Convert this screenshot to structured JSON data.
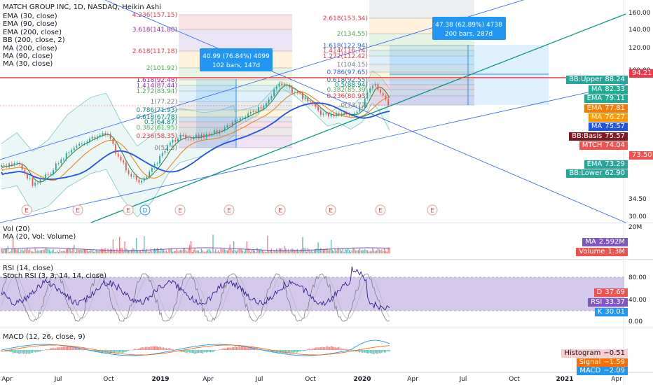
{
  "chart_data": {
    "type": "candlestick",
    "title": "MATCH GROUP INC, 1D, NASDAQ, Heikin Ashi",
    "x_ticks": [
      "Apr",
      "Jul",
      "Oct",
      "2019",
      "Apr",
      "Jul",
      "Oct",
      "2020",
      "Apr",
      "Jul",
      "Oct",
      "2021",
      "Apr"
    ],
    "main_y_ticks": [
      "160.00",
      "140.00",
      "120.00",
      "100.00",
      "34.50",
      "30.00"
    ],
    "main_legend": [
      "EMA (30, close)",
      "EMA (90, close)",
      "EMA (200, close)",
      "BB (200, close, 2)",
      "MA (200, close)",
      "MA (90, close)",
      "MA (30, close)"
    ],
    "price_badges": [
      {
        "label": "",
        "value": "94.21",
        "color": "#f23645"
      },
      {
        "label": "BB:Upper",
        "value": "88.24",
        "color": "#26a69a"
      },
      {
        "label": "MA",
        "value": "82.33",
        "color": "#22ab94"
      },
      {
        "label": "EMA",
        "value": "79.11",
        "color": "#22ab94"
      },
      {
        "label": "EMA",
        "value": "77.81",
        "color": "#f57c00"
      },
      {
        "label": "MA",
        "value": "76.27",
        "color": "#ff9800"
      },
      {
        "label": "MA",
        "value": "75.57",
        "color": "#1e53e5"
      },
      {
        "label": "BB:Basis",
        "value": "75.57",
        "color": "#801922"
      },
      {
        "label": "MTCH",
        "value": "74.04",
        "color": "#ef5350"
      },
      {
        "label": "",
        "value": "73.50",
        "color": "#ef5350"
      },
      {
        "label": "EMA",
        "value": "73.29",
        "color": "#26a69a"
      },
      {
        "label": "BB:Lower",
        "value": "62.90",
        "color": "#26a69a"
      }
    ],
    "fib_left": [
      "4.236(157.15)",
      "3.618(141.88)",
      "2.618(117.18)",
      "2(101.92)",
      "1.618(92.48)",
      "1.414(87.44)",
      "1.272(83.94)",
      "1(77.22)",
      "0.786(71.93)",
      "0.618(67.78)",
      "0.5(64.87)",
      "0.382(61.95)",
      "0.236(58.35)",
      "0(52.5)"
    ],
    "fib_right": [
      "2.618(153.34)",
      "2(134.55)",
      "1.618(122.94)",
      "1.414(116.74)",
      "1.272(112.42)",
      "1(104.15)",
      "0.786(97.65)",
      "0.618(92.55)",
      "0.5(88.94)",
      "0.382(85.39)",
      "0.236(80.93)",
      "0(73.77)"
    ],
    "measure_1": {
      "line1": "40.99 (76.84%) 4099",
      "line2": "102 bars, 147d"
    },
    "measure_2": {
      "line1": "47.38 (62.89%) 4738",
      "line2": "200 bars, 287d"
    },
    "earnings_markers": [
      "E",
      "E",
      "E",
      "D",
      "E",
      "E",
      "E",
      "E",
      "E",
      "E"
    ],
    "volume": {
      "legend": [
        "Vol (20)",
        "MA (20, Vol: Volume)"
      ],
      "y_ticks": [
        "20M"
      ],
      "badges": [
        {
          "label": "MA",
          "value": "2.592M",
          "color": "#7e57c2"
        },
        {
          "label": "Volume",
          "value": "1.3M",
          "color": "#ef5350"
        }
      ]
    },
    "rsi": {
      "legend": [
        "RSI (14, close)",
        "Stoch RSI (3, 3, 14, 14, close)"
      ],
      "y_ticks": [
        "80.00",
        "40.00",
        "0.00"
      ],
      "badges": [
        {
          "label": "D",
          "value": "37.69",
          "color": "#ef5350"
        },
        {
          "label": "RSI",
          "value": "33.37",
          "color": "#7e57c2"
        },
        {
          "label": "K",
          "value": "30.01",
          "color": "#2196f3"
        }
      ]
    },
    "macd": {
      "legend": [
        "MACD (12, 26, close, 9)"
      ],
      "badges": [
        {
          "label": "Histogram",
          "value": "−0.51",
          "color": "#fccbcd",
          "text": "#131722"
        },
        {
          "label": "Signal",
          "value": "−1.59",
          "color": "#ff6d00"
        },
        {
          "label": "MACD",
          "value": "−2.09",
          "color": "#2196f3"
        }
      ]
    },
    "colors": {
      "up": "#26a69a",
      "down": "#ef5350",
      "ema30": "#2e7d32",
      "ema90": "#f57c00",
      "ema200": "#1e53e5",
      "bb_fill": "#26a69a",
      "rsi_band": "#b39ddb",
      "resistance": "#f23645"
    }
  }
}
